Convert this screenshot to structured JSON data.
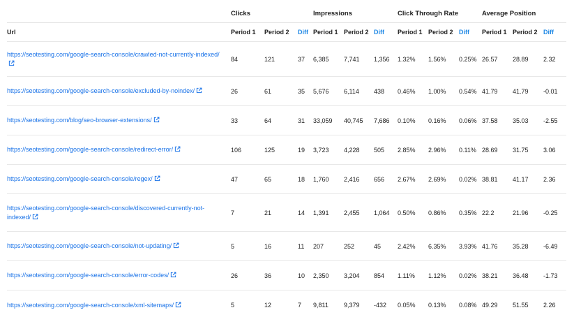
{
  "colors": {
    "link": "#1a73e8",
    "diff_header": "#1e88e5",
    "text": "#222222",
    "border": "#e8e8e8"
  },
  "groups": {
    "clicks": "Clicks",
    "impressions": "Impressions",
    "ctr": "Click Through Rate",
    "position": "Average Position"
  },
  "headers": {
    "url": "Url",
    "clicks_p1": "Period 1",
    "clicks_p2": "Period 2",
    "clicks_diff": "Diff",
    "imp_p1": "Period 1",
    "imp_p2": "Period 2",
    "imp_diff": "Diff",
    "ctr_p1": "Period 1",
    "ctr_p2": "Period 2",
    "ctr_diff": "Diff",
    "pos_p1": "Period 1",
    "pos_p2": "Period 2",
    "pos_diff": "Diff"
  },
  "link_icon": "external-link-icon",
  "rows": [
    {
      "url": "https://seotesting.com/google-search-console/crawled-not-currently-indexed/",
      "clicks": [
        "84",
        "121",
        "37"
      ],
      "impressions": [
        "6,385",
        "7,741",
        "1,356"
      ],
      "ctr": [
        "1.32%",
        "1.56%",
        "0.25%"
      ],
      "position": [
        "26.57",
        "28.89",
        "2.32"
      ]
    },
    {
      "url": "https://seotesting.com/google-search-console/excluded-by-noindex/",
      "clicks": [
        "26",
        "61",
        "35"
      ],
      "impressions": [
        "5,676",
        "6,114",
        "438"
      ],
      "ctr": [
        "0.46%",
        "1.00%",
        "0.54%"
      ],
      "position": [
        "41.79",
        "41.79",
        "-0.01"
      ]
    },
    {
      "url": "https://seotesting.com/blog/seo-browser-extensions/",
      "clicks": [
        "33",
        "64",
        "31"
      ],
      "impressions": [
        "33,059",
        "40,745",
        "7,686"
      ],
      "ctr": [
        "0.10%",
        "0.16%",
        "0.06%"
      ],
      "position": [
        "37.58",
        "35.03",
        "-2.55"
      ]
    },
    {
      "url": "https://seotesting.com/google-search-console/redirect-error/",
      "clicks": [
        "106",
        "125",
        "19"
      ],
      "impressions": [
        "3,723",
        "4,228",
        "505"
      ],
      "ctr": [
        "2.85%",
        "2.96%",
        "0.11%"
      ],
      "position": [
        "28.69",
        "31.75",
        "3.06"
      ]
    },
    {
      "url": "https://seotesting.com/google-search-console/regex/",
      "clicks": [
        "47",
        "65",
        "18"
      ],
      "impressions": [
        "1,760",
        "2,416",
        "656"
      ],
      "ctr": [
        "2.67%",
        "2.69%",
        "0.02%"
      ],
      "position": [
        "38.81",
        "41.17",
        "2.36"
      ]
    },
    {
      "url": "https://seotesting.com/google-search-console/discovered-currently-not-indexed/",
      "clicks": [
        "7",
        "21",
        "14"
      ],
      "impressions": [
        "1,391",
        "2,455",
        "1,064"
      ],
      "ctr": [
        "0.50%",
        "0.86%",
        "0.35%"
      ],
      "position": [
        "22.2",
        "21.96",
        "-0.25"
      ]
    },
    {
      "url": "https://seotesting.com/google-search-console/not-updating/",
      "clicks": [
        "5",
        "16",
        "11"
      ],
      "impressions": [
        "207",
        "252",
        "45"
      ],
      "ctr": [
        "2.42%",
        "6.35%",
        "3.93%"
      ],
      "position": [
        "41.76",
        "35.28",
        "-6.49"
      ]
    },
    {
      "url": "https://seotesting.com/google-search-console/error-codes/",
      "clicks": [
        "26",
        "36",
        "10"
      ],
      "impressions": [
        "2,350",
        "3,204",
        "854"
      ],
      "ctr": [
        "1.11%",
        "1.12%",
        "0.02%"
      ],
      "position": [
        "38.21",
        "36.48",
        "-1.73"
      ]
    },
    {
      "url": "https://seotesting.com/google-search-console/xml-sitemaps/",
      "clicks": [
        "5",
        "12",
        "7"
      ],
      "impressions": [
        "9,811",
        "9,379",
        "-432"
      ],
      "ctr": [
        "0.05%",
        "0.13%",
        "0.08%"
      ],
      "position": [
        "49.29",
        "51.55",
        "2.26"
      ]
    }
  ]
}
